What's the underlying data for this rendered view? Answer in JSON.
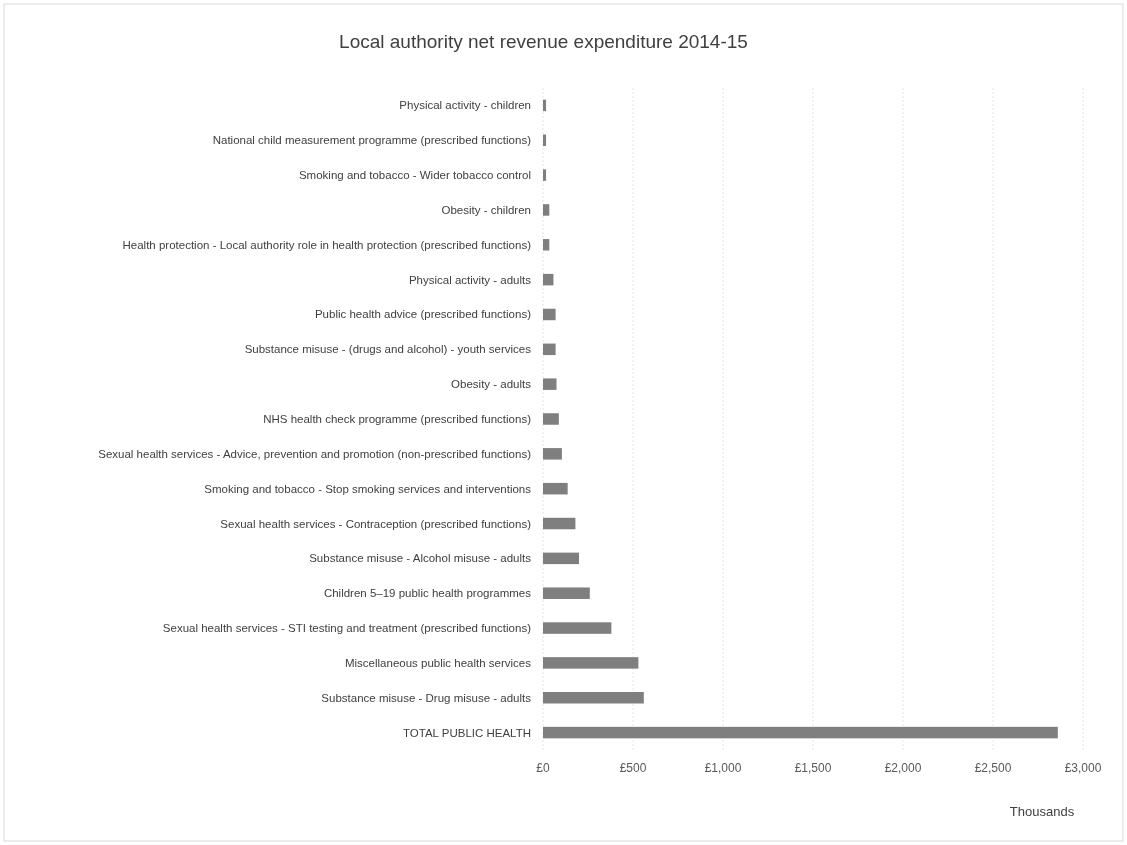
{
  "chart_data": {
    "type": "bar",
    "orientation": "horizontal",
    "title": "Local authority net revenue expenditure 2014-15",
    "xlabel": "Thousands",
    "categories": [
      "Physical activity - children",
      "National child measurement programme (prescribed functions)",
      "Smoking and tobacco - Wider tobacco control",
      "Obesity - children",
      "Health protection - Local authority role in health protection  (prescribed functions)",
      "Physical activity - adults",
      "Public health advice (prescribed functions)",
      "Substance misuse - (drugs and alcohol) - youth services",
      "Obesity - adults",
      "NHS health check programme  (prescribed functions)",
      "Sexual health services - Advice, prevention and promotion  (non-prescribed functions)",
      "Smoking and tobacco - Stop smoking services and interventions",
      "Sexual health services - Contraception (prescribed functions)",
      "Substance misuse - Alcohol misuse - adults",
      "Children 5–19 public health programmes",
      "Sexual health services - STI testing and treatment (prescribed functions)",
      "Miscellaneous public health services",
      "Substance misuse - Drug misuse - adults",
      "TOTAL PUBLIC HEALTH"
    ],
    "values": [
      17,
      17,
      17,
      35,
      35,
      58,
      70,
      70,
      75,
      88,
      105,
      137,
      180,
      200,
      260,
      380,
      530,
      560,
      2860
    ],
    "color": "#7f7f7f",
    "xlim": [
      0,
      3000
    ],
    "xticks": [
      {
        "value": 0,
        "label": "£0"
      },
      {
        "value": 500,
        "label": "£500"
      },
      {
        "value": 1000,
        "label": "£1,000"
      },
      {
        "value": 1500,
        "label": "£1,500"
      },
      {
        "value": 2000,
        "label": "£2,000"
      },
      {
        "value": 2500,
        "label": "£2,500"
      },
      {
        "value": 3000,
        "label": "£3,000"
      }
    ],
    "grid": "x"
  }
}
